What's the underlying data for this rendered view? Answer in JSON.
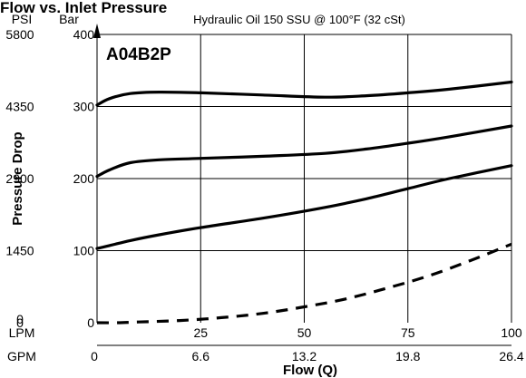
{
  "chart_data": {
    "type": "line",
    "title": "Flow vs. Inlet Pressure",
    "subtitle": "Hydraulic Oil 150 SSU @ 100°F (32 cSt)",
    "model": "A04B2P",
    "xlabel": "Flow (Q)",
    "ylabel": "Pressure Drop",
    "x_unit_lpm": "LPM",
    "x_unit_gpm": "GPM",
    "y_unit_psi": "PSI",
    "y_unit_bar": "Bar",
    "xlim": [
      0,
      100
    ],
    "ylim": [
      0,
      400
    ],
    "grid": true,
    "x_ticks_lpm": [
      "0",
      "25",
      "50",
      "75",
      "100"
    ],
    "x_ticks_gpm": [
      "0",
      "6.6",
      "13.2",
      "19.8",
      "26.4"
    ],
    "y_ticks_bar": [
      "0",
      "100",
      "200",
      "300",
      "400"
    ],
    "y_ticks_psi": [
      "0",
      "1450",
      "2900",
      "4350",
      "5800"
    ],
    "series": [
      {
        "style": "solid",
        "x": [
          0,
          3,
          8,
          15,
          25,
          40,
          55,
          65,
          75,
          85,
          100
        ],
        "y": [
          302,
          311,
          318,
          320,
          319,
          316,
          313,
          315,
          319,
          324,
          334
        ]
      },
      {
        "style": "solid",
        "x": [
          0,
          3,
          8,
          15,
          25,
          40,
          55,
          65,
          75,
          85,
          100
        ],
        "y": [
          203,
          212,
          222,
          226,
          228,
          231,
          235,
          241,
          249,
          258,
          273
        ]
      },
      {
        "style": "solid",
        "x": [
          0,
          3,
          8,
          15,
          25,
          40,
          55,
          65,
          75,
          85,
          100
        ],
        "y": [
          103,
          107,
          114,
          122,
          132,
          145,
          160,
          172,
          186,
          200,
          218
        ]
      },
      {
        "style": "dashed",
        "x": [
          0,
          5,
          10,
          20,
          30,
          40,
          50,
          60,
          70,
          80,
          90,
          100
        ],
        "y": [
          0,
          0,
          1,
          3,
          7,
          13,
          22,
          33,
          48,
          65,
          86,
          109
        ]
      }
    ]
  }
}
